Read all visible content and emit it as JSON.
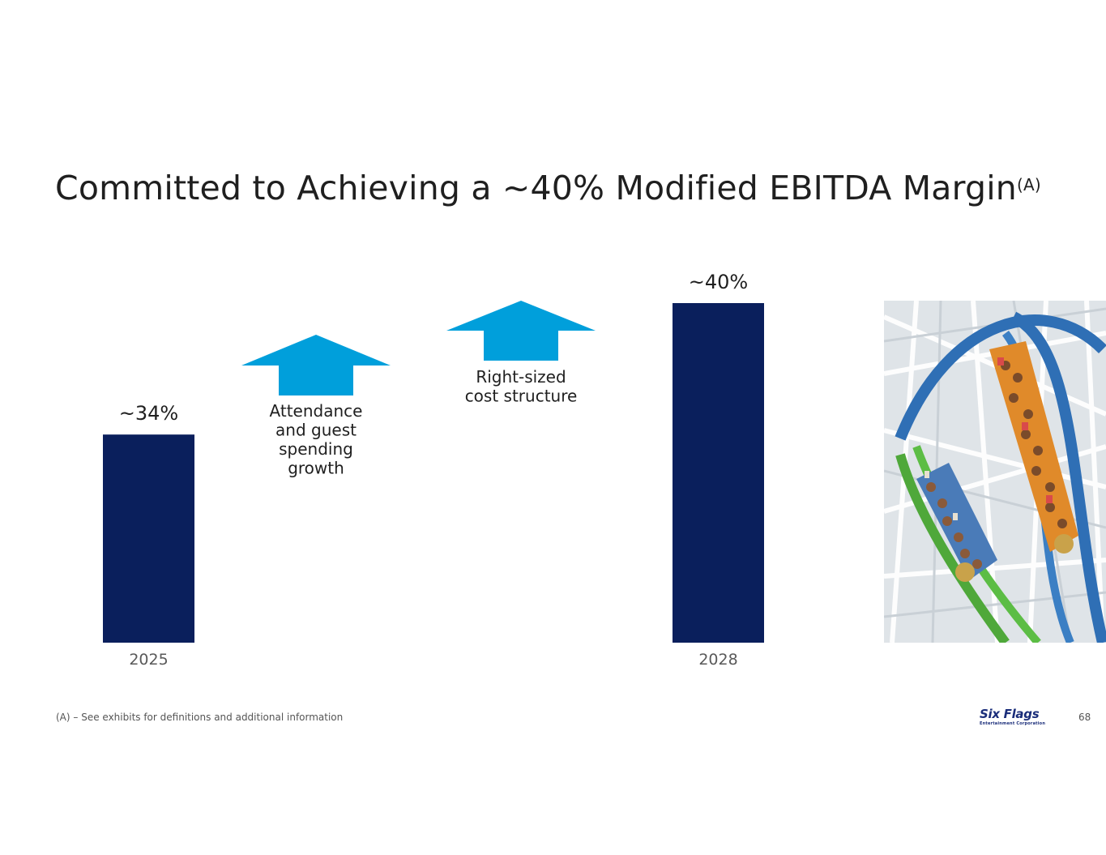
{
  "slide": {
    "title": "Committed to Achieving a ~40% Modified EBITDA Margin",
    "title_superscript": "(A)",
    "footnote": "(A) – See exhibits for definitions and additional information",
    "page_number": "68",
    "logo_text": "Six Flags",
    "logo_subtext": "Entertainment Corporation"
  },
  "chart_data": {
    "type": "bar",
    "categories": [
      "2025",
      "2028"
    ],
    "values": [
      34,
      40
    ],
    "data_labels": [
      "~34%",
      "~40%"
    ],
    "ylim": [
      0,
      40
    ],
    "grid": false,
    "bar_color": "#0a1f5c",
    "arrow_color": "#009fdb",
    "annotations": [
      {
        "text": "Attendance and guest spending growth",
        "lines": [
          "Attendance",
          "and guest",
          "spending",
          "growth"
        ]
      },
      {
        "text": "Right-sized cost structure",
        "lines": [
          "Right-sized",
          "cost structure"
        ]
      }
    ]
  },
  "image": {
    "subject": "roller-coaster-photo"
  }
}
